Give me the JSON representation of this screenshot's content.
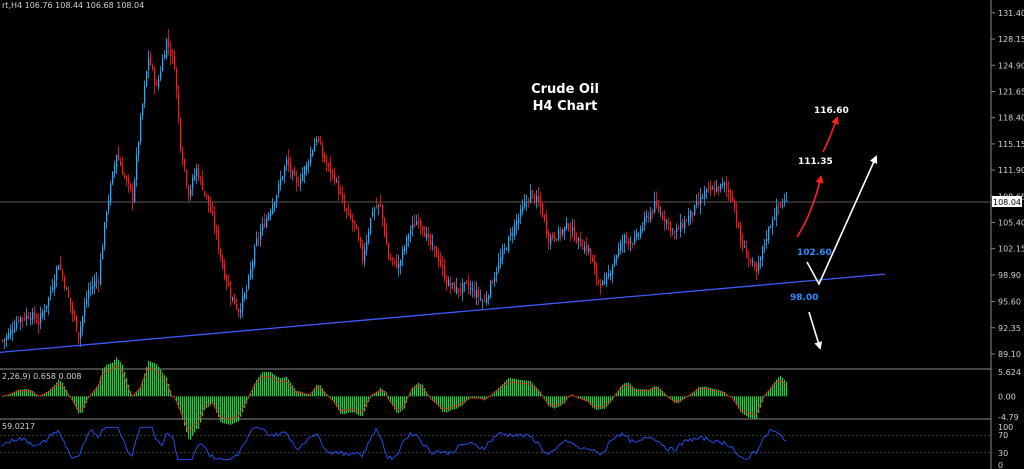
{
  "chart_header": "rt,H4  106.76 108.44 106.68 108.04",
  "title_lines": [
    "Crude Oil",
    "H4 Chart"
  ],
  "current_price": "108.04",
  "chart_data": [
    {
      "type": "candlestick",
      "panel": "price",
      "y_ticks": [
        "131.40",
        "128.15",
        "124.90",
        "121.65",
        "118.40",
        "115.15",
        "111.90",
        "108.65",
        "105.40",
        "102.15",
        "98.90",
        "95.60",
        "92.35",
        "89.10"
      ],
      "ylim": [
        88.6,
        132.0
      ],
      "close_path": [
        [
          0,
          90.5
        ],
        [
          8,
          91.5
        ],
        [
          18,
          93.5
        ],
        [
          30,
          94.0
        ],
        [
          38,
          93.0
        ],
        [
          48,
          96.0
        ],
        [
          58,
          100.5
        ],
        [
          68,
          96.0
        ],
        [
          78,
          91.5
        ],
        [
          88,
          97.0
        ],
        [
          98,
          98.5
        ],
        [
          106,
          107.0
        ],
        [
          116,
          114.0
        ],
        [
          124,
          111.0
        ],
        [
          132,
          108.5
        ],
        [
          140,
          118.0
        ],
        [
          148,
          126.0
        ],
        [
          156,
          122.0
        ],
        [
          166,
          128.0
        ],
        [
          174,
          125.0
        ],
        [
          180,
          115.0
        ],
        [
          188,
          109.0
        ],
        [
          196,
          112.0
        ],
        [
          206,
          108.5
        ],
        [
          214,
          105.0
        ],
        [
          222,
          100.0
        ],
        [
          230,
          96.5
        ],
        [
          238,
          94.5
        ],
        [
          246,
          97.0
        ],
        [
          256,
          103.0
        ],
        [
          266,
          106.0
        ],
        [
          276,
          109.0
        ],
        [
          286,
          113.0
        ],
        [
          296,
          110.0
        ],
        [
          306,
          112.5
        ],
        [
          316,
          116.0
        ],
        [
          324,
          113.0
        ],
        [
          334,
          111.0
        ],
        [
          344,
          107.0
        ],
        [
          354,
          105.0
        ],
        [
          362,
          101.0
        ],
        [
          372,
          107.0
        ],
        [
          380,
          107.5
        ],
        [
          388,
          101.0
        ],
        [
          398,
          100.0
        ],
        [
          408,
          104.0
        ],
        [
          418,
          106.0
        ],
        [
          428,
          103.0
        ],
        [
          438,
          101.0
        ],
        [
          446,
          98.0
        ],
        [
          456,
          97.0
        ],
        [
          466,
          97.5
        ],
        [
          476,
          96.5
        ],
        [
          484,
          95.5
        ],
        [
          494,
          99.0
        ],
        [
          504,
          102.0
        ],
        [
          514,
          105.0
        ],
        [
          522,
          107.0
        ],
        [
          530,
          109.0
        ],
        [
          540,
          107.5
        ],
        [
          548,
          103.5
        ],
        [
          558,
          104.0
        ],
        [
          568,
          105.0
        ],
        [
          578,
          103.0
        ],
        [
          588,
          102.0
        ],
        [
          596,
          98.5
        ],
        [
          604,
          97.5
        ],
        [
          614,
          101.0
        ],
        [
          624,
          103.5
        ],
        [
          634,
          103.0
        ],
        [
          644,
          105.5
        ],
        [
          654,
          107.5
        ],
        [
          664,
          106.0
        ],
        [
          674,
          104.0
        ],
        [
          684,
          105.5
        ],
        [
          694,
          107.0
        ],
        [
          704,
          109.0
        ],
        [
          714,
          109.5
        ],
        [
          724,
          110.0
        ],
        [
          732,
          108.5
        ],
        [
          740,
          103.0
        ],
        [
          748,
          101.0
        ],
        [
          756,
          99.0
        ],
        [
          764,
          103.0
        ],
        [
          772,
          106.0
        ],
        [
          778,
          107.5
        ],
        [
          786,
          108.0
        ]
      ],
      "trendline": {
        "from": [
          0,
          89.3
        ],
        "to": [
          885,
          99.0
        ]
      },
      "annotations": [
        {
          "label": "116.60",
          "color": "#ff2020"
        },
        {
          "label": "111.35",
          "color": "#ff2020"
        },
        {
          "label": "102.60",
          "color": "#2a8cff"
        },
        {
          "label": "98.00",
          "color": "#2a8cff"
        }
      ],
      "projection_colors": {
        "red": "#ff2020",
        "white": "#ffffff"
      }
    },
    {
      "type": "histogram",
      "panel": "macd",
      "header": "2,26,9) 0.658 0.008",
      "y_ticks": [
        "5.624",
        "0.00",
        "-4.79"
      ],
      "ylim": [
        -4.79,
        5.624
      ],
      "bar_color": "#22cc44",
      "signal_color": "#ff2020"
    },
    {
      "type": "line",
      "panel": "rsi",
      "header": "59.0217",
      "y_ticks": [
        "100",
        "70",
        "30",
        "0"
      ],
      "ylim": [
        0,
        100
      ],
      "line_color": "#2255ff"
    }
  ],
  "colors": {
    "bull": "#2aa8ff",
    "bear": "#ff1a1a",
    "trendline": "#3b5bff",
    "grid": "#666666",
    "panel_border": "#8a8a8a"
  }
}
